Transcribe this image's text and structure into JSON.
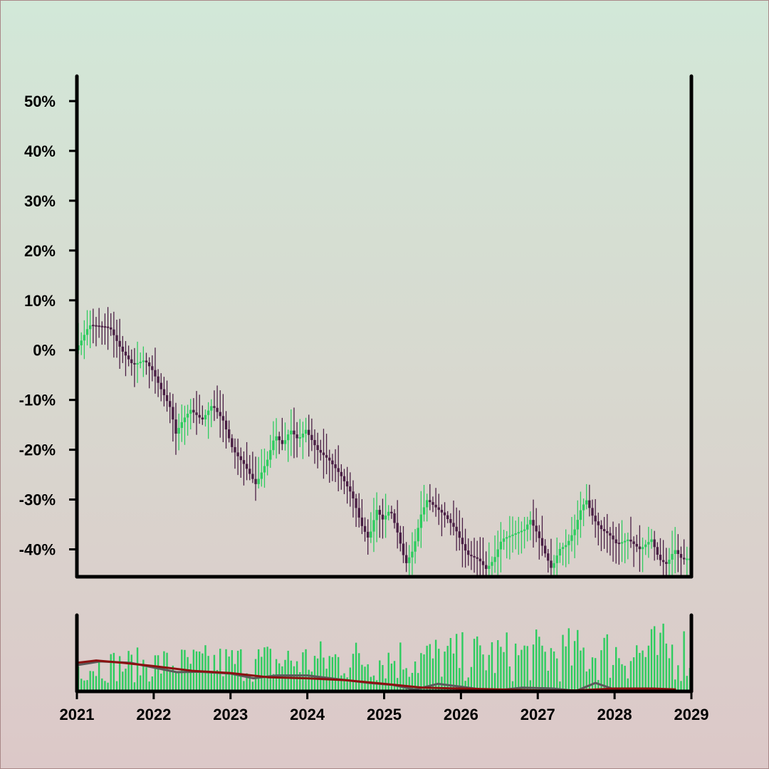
{
  "chart_data": {
    "type": "candlestick",
    "ylim": [
      -45.5,
      55
    ],
    "y_ticks": [
      50,
      40,
      30,
      20,
      10,
      0,
      -10,
      -20,
      -30,
      -40
    ],
    "y_tick_labels": [
      "50%",
      "40%",
      "30%",
      "20%",
      "10%",
      "0%",
      "-10%",
      "-20%",
      "-30%",
      "-40%"
    ],
    "x_range": [
      2021,
      2029
    ],
    "x_ticks": [
      2021,
      2022,
      2023,
      2024,
      2025,
      2026,
      2027,
      2028,
      2029
    ],
    "x_tick_labels": [
      "2021",
      "2022",
      "2023",
      "2024",
      "2025",
      "2026",
      "2027",
      "2028",
      "2029"
    ],
    "grid": false,
    "colors": {
      "up": "#2ecc5f",
      "down": "#4a1f45",
      "volume": "#2ecc5f",
      "ma_dark": "#8b1010",
      "ma_gray": "#5a5a5a",
      "axis": "#000000"
    },
    "close_path": [
      [
        2021.0,
        0.0
      ],
      [
        2021.08,
        2.0
      ],
      [
        2021.18,
        5.0
      ],
      [
        2021.45,
        4.5
      ],
      [
        2021.6,
        0.0
      ],
      [
        2021.75,
        -3.0
      ],
      [
        2021.9,
        -2.0
      ],
      [
        2022.0,
        -4.0
      ],
      [
        2022.12,
        -8.0
      ],
      [
        2022.25,
        -12.0
      ],
      [
        2022.3,
        -17.0
      ],
      [
        2022.4,
        -14.0
      ],
      [
        2022.5,
        -12.0
      ],
      [
        2022.65,
        -14.0
      ],
      [
        2022.78,
        -11.0
      ],
      [
        2022.92,
        -14.0
      ],
      [
        2023.05,
        -20.0
      ],
      [
        2023.2,
        -23.0
      ],
      [
        2023.35,
        -27.0
      ],
      [
        2023.5,
        -22.0
      ],
      [
        2023.6,
        -17.0
      ],
      [
        2023.7,
        -19.0
      ],
      [
        2023.8,
        -16.0
      ],
      [
        2023.9,
        -18.0
      ],
      [
        2024.0,
        -16.0
      ],
      [
        2024.15,
        -20.0
      ],
      [
        2024.3,
        -22.0
      ],
      [
        2024.45,
        -25.0
      ],
      [
        2024.6,
        -29.0
      ],
      [
        2024.72,
        -35.0
      ],
      [
        2024.82,
        -38.0
      ],
      [
        2024.92,
        -32.0
      ],
      [
        2025.0,
        -34.0
      ],
      [
        2025.1,
        -32.0
      ],
      [
        2025.2,
        -37.0
      ],
      [
        2025.3,
        -43.0
      ],
      [
        2025.4,
        -40.0
      ],
      [
        2025.5,
        -33.0
      ],
      [
        2025.58,
        -30.0
      ],
      [
        2025.65,
        -31.0
      ],
      [
        2025.8,
        -33.0
      ],
      [
        2025.95,
        -36.0
      ],
      [
        2026.1,
        -41.0
      ],
      [
        2026.25,
        -42.0
      ],
      [
        2026.35,
        -44.0
      ],
      [
        2026.45,
        -42.0
      ],
      [
        2026.55,
        -38.0
      ],
      [
        2026.7,
        -37.0
      ],
      [
        2026.85,
        -36.0
      ],
      [
        2026.92,
        -34.0
      ],
      [
        2027.02,
        -37.0
      ],
      [
        2027.12,
        -41.0
      ],
      [
        2027.2,
        -44.0
      ],
      [
        2027.3,
        -40.0
      ],
      [
        2027.4,
        -39.0
      ],
      [
        2027.5,
        -36.0
      ],
      [
        2027.58,
        -32.0
      ],
      [
        2027.65,
        -30.0
      ],
      [
        2027.75,
        -34.0
      ],
      [
        2027.85,
        -36.0
      ],
      [
        2027.95,
        -37.0
      ],
      [
        2028.05,
        -39.0
      ],
      [
        2028.2,
        -38.0
      ],
      [
        2028.35,
        -40.0
      ],
      [
        2028.5,
        -38.0
      ],
      [
        2028.6,
        -42.0
      ],
      [
        2028.7,
        -43.0
      ],
      [
        2028.8,
        -40.0
      ],
      [
        2028.9,
        -42.0
      ],
      [
        2029.0,
        -42.0
      ]
    ],
    "volume_ma_dark": [
      [
        2021.0,
        0.55
      ],
      [
        2021.25,
        0.6
      ],
      [
        2021.6,
        0.55
      ],
      [
        2022.0,
        0.48
      ],
      [
        2022.5,
        0.38
      ],
      [
        2023.0,
        0.33
      ],
      [
        2023.5,
        0.24
      ],
      [
        2024.0,
        0.22
      ],
      [
        2024.5,
        0.18
      ],
      [
        2025.0,
        0.1
      ],
      [
        2025.5,
        0.02
      ],
      [
        2026.0,
        0.0
      ],
      [
        2026.5,
        -0.02
      ],
      [
        2027.0,
        -0.04
      ],
      [
        2027.5,
        -0.04
      ],
      [
        2028.0,
        0.0
      ],
      [
        2028.5,
        0.0
      ],
      [
        2028.8,
        -0.02
      ]
    ],
    "volume_ma_gray": [
      [
        2021.0,
        0.5
      ],
      [
        2021.3,
        0.58
      ],
      [
        2021.7,
        0.55
      ],
      [
        2022.0,
        0.45
      ],
      [
        2022.3,
        0.35
      ],
      [
        2022.6,
        0.36
      ],
      [
        2023.0,
        0.32
      ],
      [
        2023.3,
        0.22
      ],
      [
        2023.6,
        0.28
      ],
      [
        2024.0,
        0.28
      ],
      [
        2024.4,
        0.2
      ],
      [
        2024.8,
        0.12
      ],
      [
        2025.1,
        0.08
      ],
      [
        2025.4,
        -0.02
      ],
      [
        2025.7,
        0.1
      ],
      [
        2026.0,
        0.04
      ],
      [
        2026.4,
        -0.06
      ],
      [
        2026.8,
        0.02
      ],
      [
        2027.2,
        0.0
      ],
      [
        2027.5,
        -0.06
      ],
      [
        2027.75,
        0.12
      ],
      [
        2028.0,
        -0.02
      ],
      [
        2028.4,
        -0.02
      ],
      [
        2028.8,
        -0.06
      ]
    ]
  }
}
